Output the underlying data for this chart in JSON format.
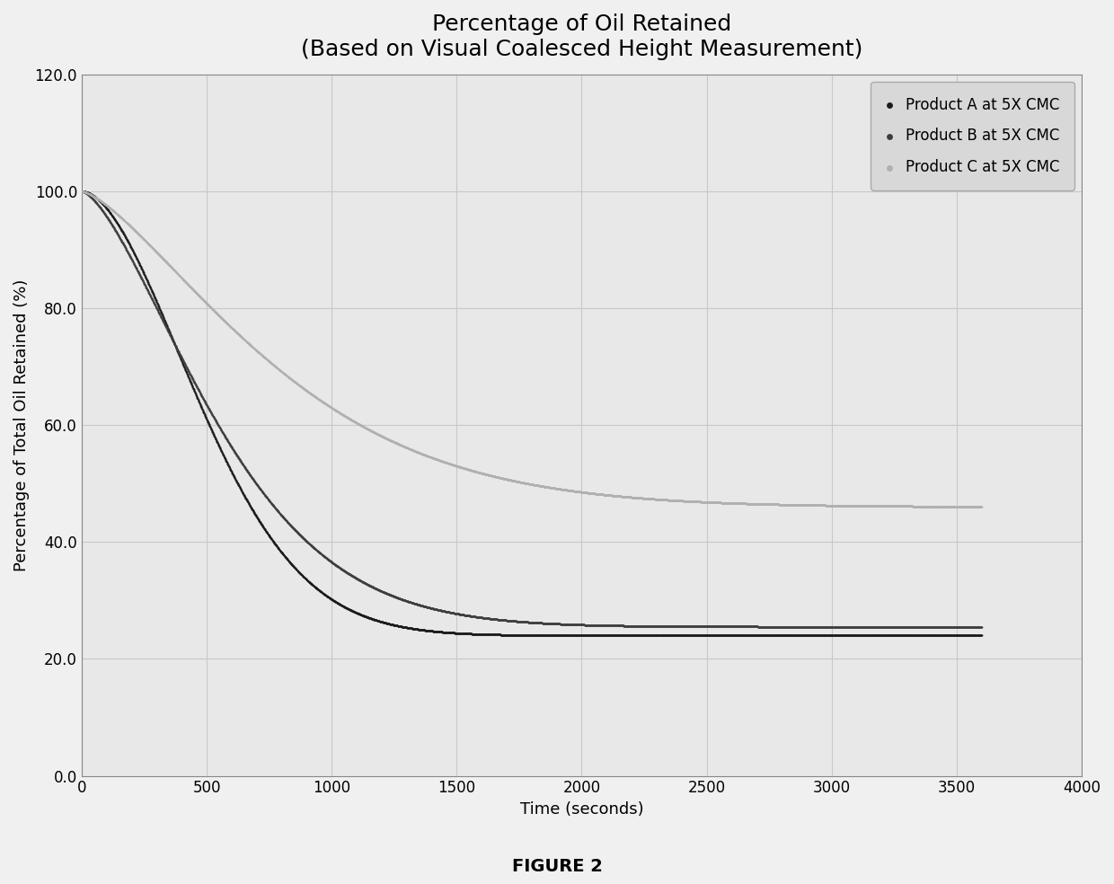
{
  "title_line1": "Percentage of Oil Retained",
  "title_line2": "(Based on Visual Coalesced Height Measurement)",
  "xlabel": "Time (seconds)",
  "ylabel": "Percentage of Total Oil Retained (%)",
  "figure_caption": "FIGURE 2",
  "xlim": [
    0,
    4000
  ],
  "ylim": [
    0.0,
    120.0
  ],
  "xticks": [
    0,
    500,
    1000,
    1500,
    2000,
    2500,
    3000,
    3500,
    4000
  ],
  "yticks": [
    0.0,
    20.0,
    40.0,
    60.0,
    80.0,
    100.0,
    120.0
  ],
  "series": [
    {
      "label": "Product A at 5X CMC",
      "color": "#1a1a1a",
      "y0": 100.0,
      "y_end": 24.0,
      "k": 1.8,
      "tau": 600
    },
    {
      "label": "Product B at 5X CMC",
      "color": "#3d3d3d",
      "y0": 100.0,
      "y_end": 25.5,
      "k": 1.5,
      "tau": 650
    },
    {
      "label": "Product C at 5X CMC",
      "color": "#b0b0b0",
      "y0": 100.0,
      "y_end": 46.0,
      "k": 1.4,
      "tau": 900
    }
  ],
  "bg_color": "#f0f0f0",
  "plot_bg_color": "#e8e8e8",
  "grid_color": "#c8c8c8",
  "title_fontsize": 18,
  "label_fontsize": 13,
  "tick_fontsize": 12,
  "legend_fontsize": 12
}
